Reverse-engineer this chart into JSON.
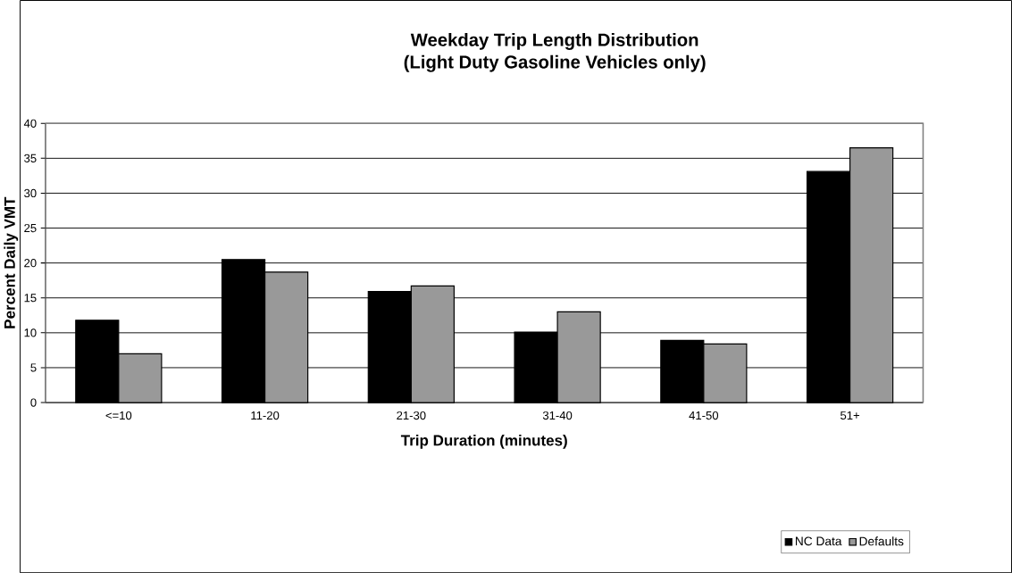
{
  "chart_data": {
    "type": "bar",
    "title": "Weekday Trip Length Distribution",
    "subtitle": "(Light Duty Gasoline Vehicles only)",
    "xlabel": "Trip Duration (minutes)",
    "ylabel": "Percent Daily VMT",
    "categories": [
      "<=10",
      "11-20",
      "21-30",
      "31-40",
      "41-50",
      "51+"
    ],
    "series": [
      {
        "name": "NC Data",
        "color": "#000000",
        "values": [
          11.8,
          20.5,
          15.9,
          10.1,
          8.9,
          33.1
        ]
      },
      {
        "name": "Defaults",
        "color": "#999999",
        "values": [
          7.0,
          18.7,
          16.7,
          13.0,
          8.4,
          36.5
        ]
      }
    ],
    "ylim": [
      0,
      40
    ],
    "yticks": [
      0,
      5,
      10,
      15,
      20,
      25,
      30,
      35,
      40
    ],
    "grid": "y",
    "legend": "bottom right"
  }
}
